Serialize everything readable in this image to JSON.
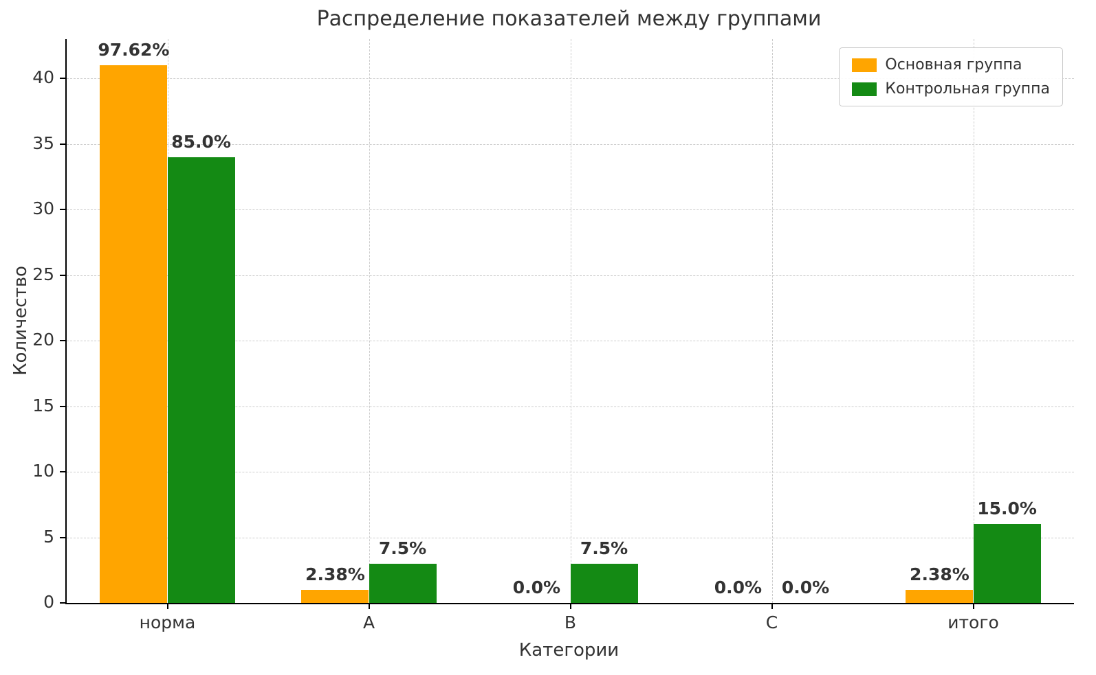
{
  "chart_data": {
    "type": "bar",
    "title": "Распределение показателей между группами",
    "xlabel": "Категории",
    "ylabel": "Количество",
    "categories": [
      "норма",
      "A",
      "B",
      "C",
      "итого"
    ],
    "series": [
      {
        "name": "Основная группа",
        "color": "#FFA500",
        "values": [
          41,
          1,
          0,
          0,
          1
        ],
        "labels": [
          "97.62%",
          "2.38%",
          "0.0%",
          "0.0%",
          "2.38%"
        ]
      },
      {
        "name": "Контрольная группа",
        "color": "#148a14",
        "values": [
          34,
          3,
          3,
          0,
          6
        ],
        "labels": [
          "85.0%",
          "7.5%",
          "7.5%",
          "0.0%",
          "15.0%"
        ]
      }
    ],
    "ylim": [
      0,
      43
    ],
    "yticks": [
      0,
      5,
      10,
      15,
      20,
      25,
      30,
      35,
      40
    ],
    "grid": true,
    "legend_position": "top-right"
  }
}
